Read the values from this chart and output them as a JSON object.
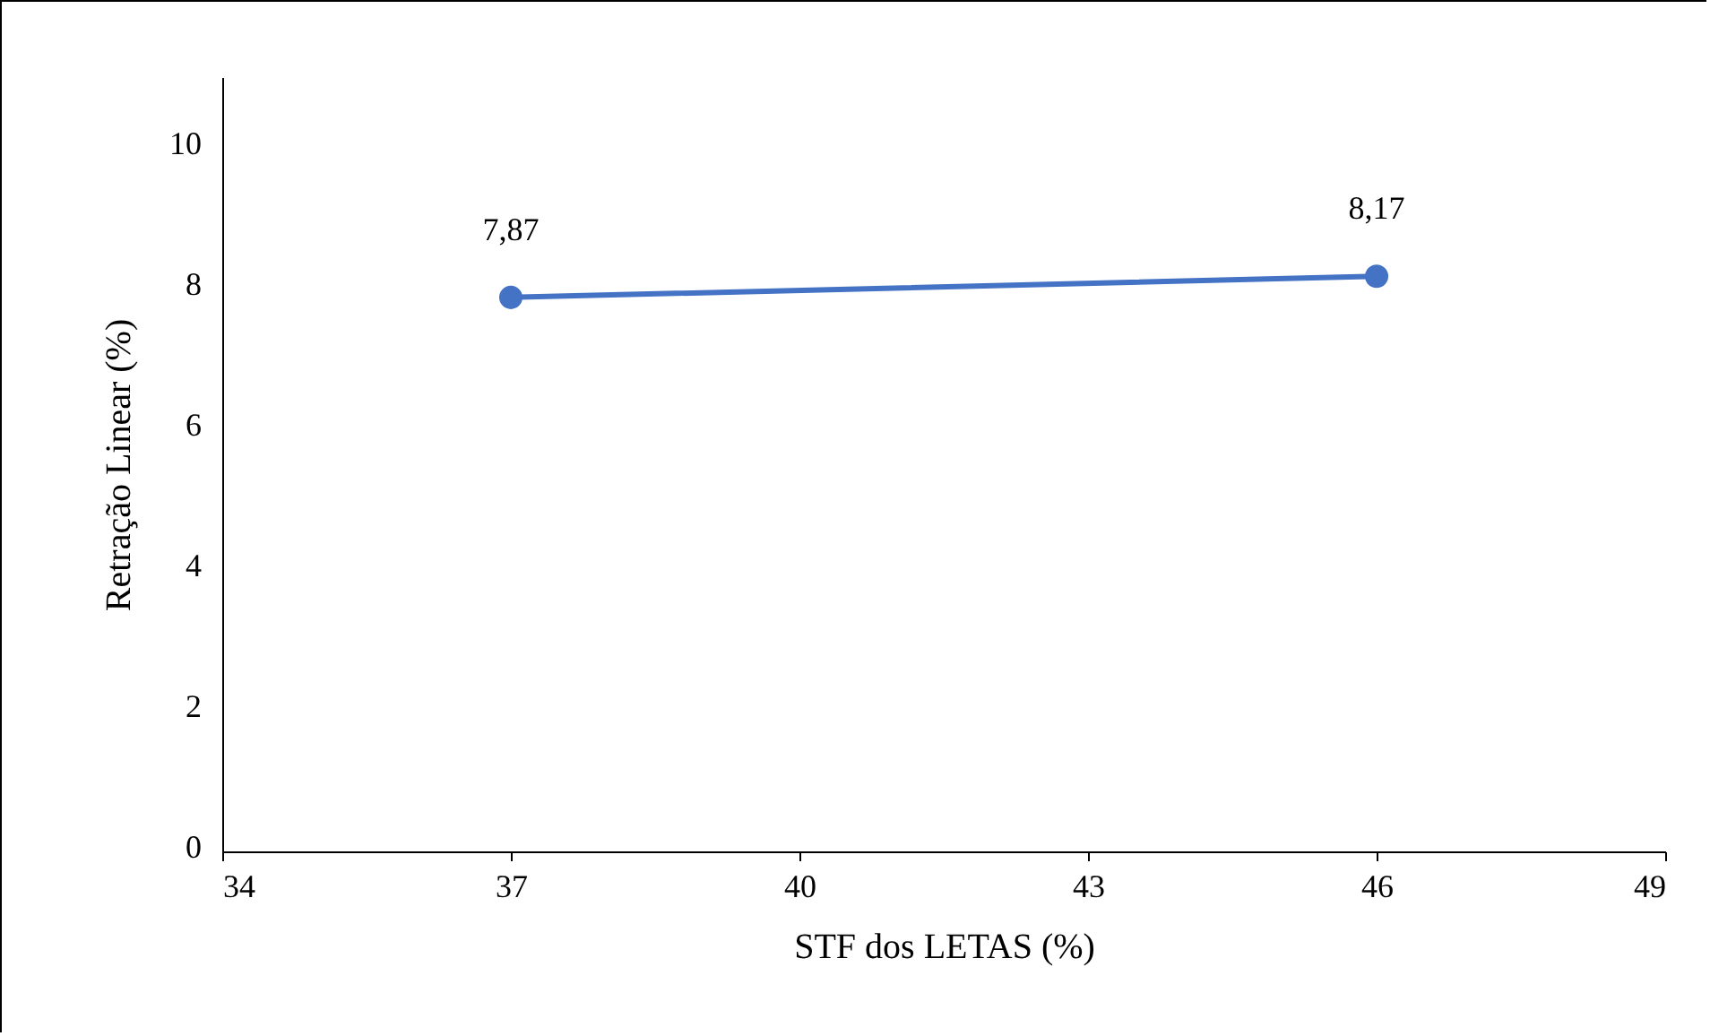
{
  "chart_data": {
    "type": "line",
    "xlabel": "STF dos LETAS (%)",
    "ylabel": "Retração Linear (%)",
    "x": [
      37,
      46
    ],
    "series": [
      {
        "color": "#4472c4",
        "values": [
          7.87,
          8.17
        ],
        "value_labels": [
          "7,87",
          "8,17"
        ]
      }
    ],
    "xlim": [
      34,
      49
    ],
    "xticks": [
      34,
      37,
      40,
      43,
      46,
      49
    ],
    "ylim": [
      0,
      11
    ],
    "yticks": [
      0,
      2,
      4,
      6,
      8,
      10
    ],
    "grid": false,
    "marker": "circle",
    "line_style": "solid"
  }
}
